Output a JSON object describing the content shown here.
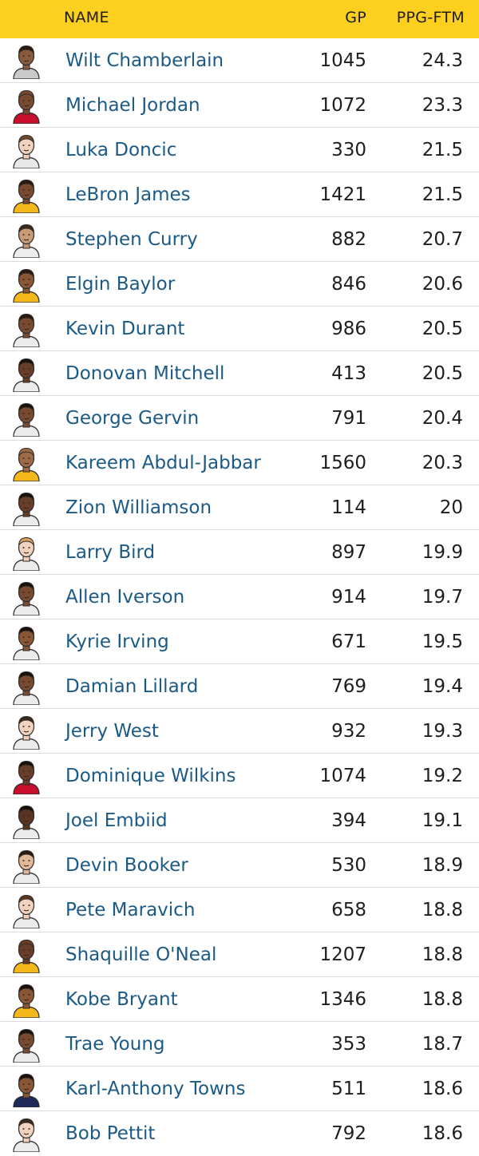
{
  "header": {
    "name_label": "NAME",
    "gp_label": "GP",
    "ppg_label": "PPG-FTM"
  },
  "colors": {
    "header_bg": "#fdd01f",
    "name_text": "#1c5a86",
    "value_text": "#1e1e1e",
    "divider": "#dcdcdc"
  },
  "players": [
    {
      "name": "Wilt Chamberlain",
      "gp": "1045",
      "ppg": "24.3",
      "icon": "player-avatar-icon",
      "skin": "#8a5a3c",
      "hair": "#2a1a10",
      "jersey": "#c9c9c9"
    },
    {
      "name": "Michael Jordan",
      "gp": "1072",
      "ppg": "23.3",
      "icon": "player-avatar-icon",
      "skin": "#7a4a30",
      "hair": "#7a4a30",
      "jersey": "#c8102e"
    },
    {
      "name": "Luka Doncic",
      "gp": "330",
      "ppg": "21.5",
      "icon": "player-avatar-icon",
      "skin": "#f1d2bf",
      "hair": "#6b4a32",
      "jersey": "#e8e8e8"
    },
    {
      "name": "LeBron James",
      "gp": "1421",
      "ppg": "21.5",
      "icon": "player-avatar-icon",
      "skin": "#7b4a2e",
      "hair": "#2a1a10",
      "jersey": "#f5b81c"
    },
    {
      "name": "Stephen Curry",
      "gp": "882",
      "ppg": "20.7",
      "icon": "player-avatar-icon",
      "skin": "#c99a76",
      "hair": "#3a2a1c",
      "jersey": "#eeeeee"
    },
    {
      "name": "Elgin Baylor",
      "gp": "846",
      "ppg": "20.6",
      "icon": "player-avatar-icon",
      "skin": "#8a5636",
      "hair": "#2a1a10",
      "jersey": "#f5b81c"
    },
    {
      "name": "Kevin Durant",
      "gp": "986",
      "ppg": "20.5",
      "icon": "player-avatar-icon",
      "skin": "#7a4a30",
      "hair": "#2a1a10",
      "jersey": "#ececec"
    },
    {
      "name": "Donovan Mitchell",
      "gp": "413",
      "ppg": "20.5",
      "icon": "player-avatar-icon",
      "skin": "#6a3e26",
      "hair": "#1a1008",
      "jersey": "#ececec"
    },
    {
      "name": "George Gervin",
      "gp": "791",
      "ppg": "20.4",
      "icon": "player-avatar-icon",
      "skin": "#7a4a30",
      "hair": "#1a1008",
      "jersey": "#ececec"
    },
    {
      "name": "Kareem Abdul-Jabbar",
      "gp": "1560",
      "ppg": "20.3",
      "icon": "player-avatar-icon",
      "skin": "#a06a46",
      "hair": "#a06a46",
      "jersey": "#f5b81c"
    },
    {
      "name": "Zion Williamson",
      "gp": "114",
      "ppg": "20",
      "icon": "player-avatar-icon",
      "skin": "#6a3e26",
      "hair": "#1a1008",
      "jersey": "#ececec"
    },
    {
      "name": "Larry Bird",
      "gp": "897",
      "ppg": "19.9",
      "icon": "player-avatar-icon",
      "skin": "#f1d2bf",
      "hair": "#d9a060",
      "jersey": "#ececec"
    },
    {
      "name": "Allen Iverson",
      "gp": "914",
      "ppg": "19.7",
      "icon": "player-avatar-icon",
      "skin": "#7a4a30",
      "hair": "#1a1008",
      "jersey": "#ececec"
    },
    {
      "name": "Kyrie Irving",
      "gp": "671",
      "ppg": "19.5",
      "icon": "player-avatar-icon",
      "skin": "#8a5636",
      "hair": "#1a1008",
      "jersey": "#ececec"
    },
    {
      "name": "Damian Lillard",
      "gp": "769",
      "ppg": "19.4",
      "icon": "player-avatar-icon",
      "skin": "#7a4a30",
      "hair": "#1a1008",
      "jersey": "#ececec"
    },
    {
      "name": "Jerry West",
      "gp": "932",
      "ppg": "19.3",
      "icon": "player-avatar-icon",
      "skin": "#f1d2bf",
      "hair": "#3a2a1c",
      "jersey": "#ececec"
    },
    {
      "name": "Dominique Wilkins",
      "gp": "1074",
      "ppg": "19.2",
      "icon": "player-avatar-icon",
      "skin": "#6a3e26",
      "hair": "#1a1008",
      "jersey": "#c8102e"
    },
    {
      "name": "Joel Embiid",
      "gp": "394",
      "ppg": "19.1",
      "icon": "player-avatar-icon",
      "skin": "#5a3420",
      "hair": "#1a1008",
      "jersey": "#ececec"
    },
    {
      "name": "Devin Booker",
      "gp": "530",
      "ppg": "18.9",
      "icon": "player-avatar-icon",
      "skin": "#e2b898",
      "hair": "#2a1a10",
      "jersey": "#ececec"
    },
    {
      "name": "Pete Maravich",
      "gp": "658",
      "ppg": "18.8",
      "icon": "player-avatar-icon",
      "skin": "#f1d2bf",
      "hair": "#5a3a22",
      "jersey": "#ececec"
    },
    {
      "name": "Shaquille O'Neal",
      "gp": "1207",
      "ppg": "18.8",
      "icon": "player-avatar-icon",
      "skin": "#6a3e26",
      "hair": "#6a3e26",
      "jersey": "#f5b81c"
    },
    {
      "name": "Kobe Bryant",
      "gp": "1346",
      "ppg": "18.8",
      "icon": "player-avatar-icon",
      "skin": "#8a5636",
      "hair": "#1a1008",
      "jersey": "#f5b81c"
    },
    {
      "name": "Trae Young",
      "gp": "353",
      "ppg": "18.7",
      "icon": "player-avatar-icon",
      "skin": "#7a4a30",
      "hair": "#1a1008",
      "jersey": "#ececec"
    },
    {
      "name": "Karl-Anthony Towns",
      "gp": "511",
      "ppg": "18.6",
      "icon": "player-avatar-icon",
      "skin": "#8a5636",
      "hair": "#1a1008",
      "jersey": "#1d2a5a"
    },
    {
      "name": "Bob Pettit",
      "gp": "792",
      "ppg": "18.6",
      "icon": "player-avatar-icon",
      "skin": "#f1d2bf",
      "hair": "#3a2a1c",
      "jersey": "#ececec"
    }
  ]
}
